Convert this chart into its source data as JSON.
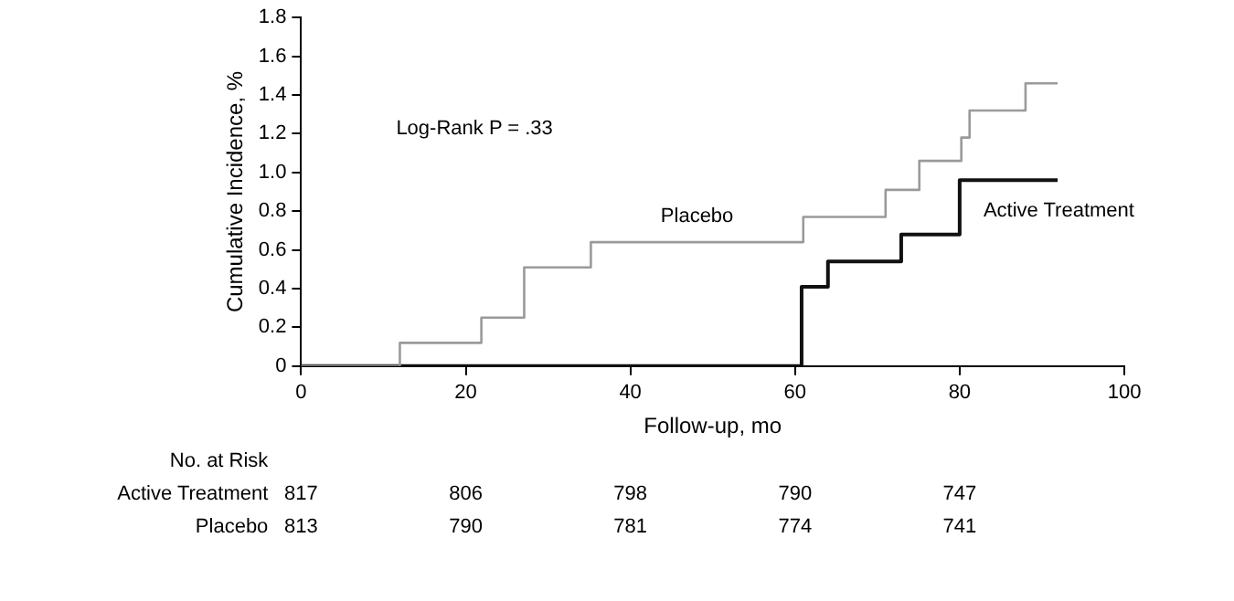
{
  "chart_data": {
    "type": "step",
    "xlabel": "Follow-up, mo",
    "ylabel": "Cumulative Incidence, %",
    "xlim": [
      0,
      100
    ],
    "xticks": [
      0,
      20,
      40,
      60,
      80,
      100
    ],
    "ylim": [
      0,
      1.8
    ],
    "yticks": [
      0,
      0.2,
      0.4,
      0.6,
      0.8,
      {
        "value": 1,
        "label": "1.0"
      },
      1.2,
      1.4,
      1.6,
      1.8
    ],
    "grid": false,
    "legend": false,
    "series": [
      {
        "name": "Placebo",
        "color": "#9a9a9a",
        "x": [
          0,
          12,
          21.9,
          27.1,
          35.2,
          61,
          71,
          75.1,
          80.2,
          81.2,
          88,
          91.9
        ],
        "values": [
          0,
          0.12,
          0.25,
          0.51,
          0.64,
          0.77,
          0.91,
          1.06,
          1.18,
          1.32,
          1.46,
          1.46
        ]
      },
      {
        "name": "Active Treatment",
        "color": "#111111",
        "x": [
          0,
          60.8,
          64,
          72.9,
          80,
          91.9
        ],
        "values": [
          0,
          0.41,
          0.54,
          0.68,
          0.96,
          0.96
        ]
      }
    ],
    "annotations": [
      "Log-Rank P = .33",
      "No. at Risk",
      "Active Treatment",
      "817",
      "806",
      "798",
      "790",
      "747",
      "Placebo",
      "813",
      "790",
      "781",
      "774",
      "741"
    ]
  }
}
